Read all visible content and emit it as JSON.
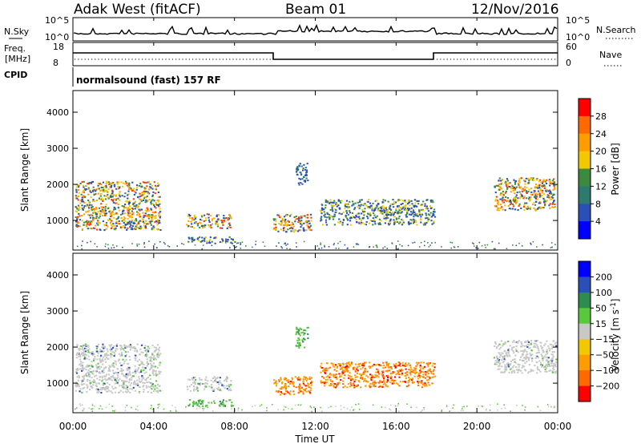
{
  "header": {
    "station": "Adak West (fitACF)",
    "beam": "Beam 01",
    "date": "12/Nov/2016"
  },
  "panels": {
    "nsky_label": "N.Sky",
    "nsky_ticks": [
      "10^5",
      "10^0"
    ],
    "nsearch_label": "N.Search",
    "nsearch_ticks": [
      "10^5",
      "10^0"
    ],
    "freq_label_1": "Freq.",
    "freq_label_2": "[MHz]",
    "freq_ticks": [
      "18",
      "8"
    ],
    "nave_label": "Nave",
    "nave_ticks": [
      "60",
      "0"
    ],
    "cpid_label": "CPID",
    "cpid_text": "normalsound (fast) 157 RF"
  },
  "chart_data": [
    {
      "type": "heatmap",
      "name": "power",
      "ylabel": "Slant Range [km]",
      "yticks": [
        1000,
        2000,
        3000,
        4000
      ],
      "ylim": [
        180,
        4600
      ],
      "xlabel": "",
      "xticks": [
        "00:00",
        "04:00",
        "08:00",
        "12:00",
        "16:00",
        "20:00",
        "00:00"
      ],
      "xlim_hours": [
        0,
        24
      ],
      "colorbar": {
        "label": "Power [dB]",
        "ticks": [
          "28",
          "24",
          "20",
          "16",
          "12",
          "8",
          "4"
        ],
        "colors": [
          "#ff0000",
          "#ff6a00",
          "#ff9c00",
          "#f2c800",
          "#3d8a3e",
          "#2f7a6e",
          "#2b4fb8",
          "#0000ff"
        ]
      },
      "echo_regions_hours_km": [
        {
          "t0": 0.1,
          "t1": 4.3,
          "r0": 750,
          "r1": 2100,
          "level": "high"
        },
        {
          "t0": 5.6,
          "t1": 7.8,
          "r0": 800,
          "r1": 1200,
          "level": "high"
        },
        {
          "t0": 5.6,
          "t1": 8.0,
          "r0": 380,
          "r1": 560,
          "level": "mid"
        },
        {
          "t0": 9.9,
          "t1": 11.8,
          "r0": 700,
          "r1": 1200,
          "level": "high"
        },
        {
          "t0": 12.2,
          "t1": 17.9,
          "r0": 900,
          "r1": 1600,
          "level": "mid"
        },
        {
          "t0": 11.0,
          "t1": 11.6,
          "r0": 2000,
          "r1": 2600,
          "level": "low"
        },
        {
          "t0": 20.8,
          "t1": 23.9,
          "r0": 1300,
          "r1": 2200,
          "level": "high"
        }
      ]
    },
    {
      "type": "heatmap",
      "name": "velocity",
      "ylabel": "Slant Range [km]",
      "yticks": [
        1000,
        2000,
        3000,
        4000
      ],
      "ylim": [
        180,
        4600
      ],
      "xlabel": "Time UT",
      "xticks": [
        "00:00",
        "04:00",
        "08:00",
        "12:00",
        "16:00",
        "20:00",
        "00:00"
      ],
      "xlim_hours": [
        0,
        24
      ],
      "colorbar": {
        "label": "Velocity [m s",
        "label_sup": "-1",
        "label_end": "]",
        "ticks": [
          "200",
          "100",
          "50",
          "15",
          "−15",
          "−50",
          "−100",
          "−200"
        ],
        "colors": [
          "#0000ff",
          "#2b4fb8",
          "#2e8c4e",
          "#5ac83c",
          "#c8c8c8",
          "#f2c800",
          "#ff9c00",
          "#ff6a00",
          "#ff0000"
        ]
      },
      "echo_regions_hours_km": [
        {
          "t0": 0.1,
          "t1": 4.3,
          "r0": 750,
          "r1": 2100,
          "v": "-15..15"
        },
        {
          "t0": 5.6,
          "t1": 7.8,
          "r0": 800,
          "r1": 1200,
          "v": "-15..15"
        },
        {
          "t0": 5.6,
          "t1": 8.0,
          "r0": 380,
          "r1": 560,
          "v": "15..50"
        },
        {
          "t0": 9.9,
          "t1": 11.8,
          "r0": 700,
          "r1": 1200,
          "v": "-100..-50"
        },
        {
          "t0": 12.2,
          "t1": 17.9,
          "r0": 900,
          "r1": 1600,
          "v": "-100..-50"
        },
        {
          "t0": 11.0,
          "t1": 11.6,
          "r0": 2000,
          "r1": 2600,
          "v": "15..50"
        },
        {
          "t0": 20.8,
          "t1": 23.9,
          "r0": 1300,
          "r1": 2200,
          "v": "-15..15"
        }
      ]
    }
  ],
  "colors": {
    "power_low": "#2b4fb8",
    "power_mid": "#3d8a3e",
    "power_high": "#ff6a00",
    "velocity_gray": "#c8c8c8",
    "velocity_neg": "#ff9c00",
    "velocity_pos": "#5ac83c"
  }
}
